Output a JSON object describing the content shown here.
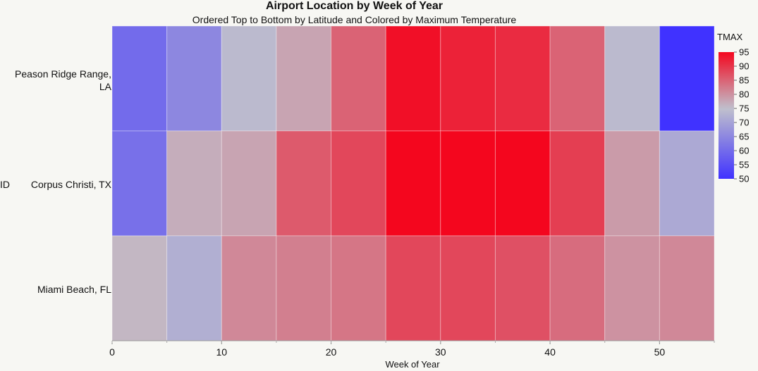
{
  "chart_data": {
    "type": "heatmap",
    "title": "Airport Location by Week of Year",
    "subtitle": "Ordered Top to Bottom by Latitude and Colored by Maximum Temperature",
    "xlabel": "Week of Year",
    "ylabel": "ID",
    "xlim": [
      0,
      55
    ],
    "x_ticks": [
      "0",
      "10",
      "20",
      "30",
      "40",
      "50"
    ],
    "bin_width": 5,
    "bin_starts": [
      0,
      5,
      10,
      15,
      20,
      25,
      30,
      35,
      40,
      45,
      50
    ],
    "rows": [
      {
        "label": "Peason Ridge Range,\nLA",
        "values": [
          60,
          65,
          74,
          78,
          85,
          94,
          92,
          91,
          85,
          74,
          50
        ]
      },
      {
        "label": "Corpus Christi, TX",
        "values": [
          61,
          77,
          78,
          86,
          88,
          95,
          95,
          96,
          89,
          79,
          71
        ]
      },
      {
        "label": "Miami Beach, FL",
        "values": [
          76,
          72,
          81,
          82,
          83,
          88,
          88,
          87,
          84,
          80,
          81
        ]
      }
    ],
    "legend": {
      "title": "TMAX",
      "min": 50,
      "max": 95,
      "ticks": [
        "95",
        "90",
        "85",
        "80",
        "75",
        "70",
        "65",
        "60",
        "55",
        "50"
      ],
      "colors": {
        "low": "#4032ff",
        "mid": "#c0c0cc",
        "high": "#f4061e"
      }
    }
  }
}
